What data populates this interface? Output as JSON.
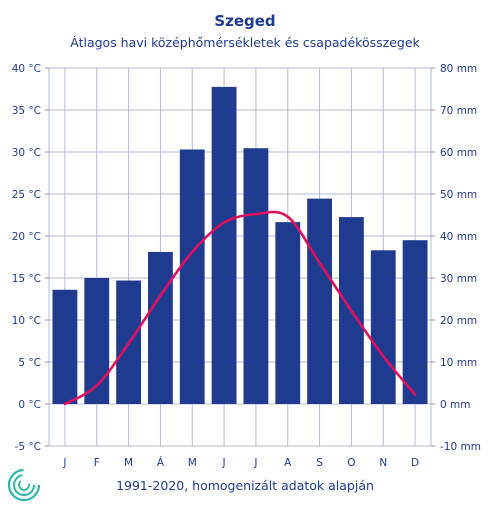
{
  "chart_data": {
    "type": "bar",
    "title": "Szeged",
    "subtitle": "Átlagos havi középhőmérsékletek  és csapadékösszegek",
    "footnote": "1991-2020, homogenizált adatok alapján",
    "categories": [
      "J",
      "F",
      "M",
      "Á",
      "M",
      "J",
      "J",
      "A",
      "S",
      "O",
      "N",
      "D"
    ],
    "left_axis": {
      "ticks": [
        "-5 °C",
        "0 °C",
        "5 °C",
        "10 °C",
        "15 °C",
        "20 °C",
        "25 °C",
        "30 °C",
        "35 °C",
        "40 °C"
      ],
      "ylim": [
        -5,
        40
      ]
    },
    "right_axis": {
      "ticks": [
        "-10 mm",
        "0 mm",
        "10 mm",
        "20 mm",
        "30 mm",
        "40 mm",
        "50 mm",
        "60 mm",
        "70 mm",
        "80 mm"
      ],
      "ylim": [
        -10,
        80
      ]
    },
    "series": [
      {
        "type": "bar",
        "axis": "right",
        "unit": "mm",
        "color": "#1f3b8f",
        "values": [
          27.2,
          30.0,
          29.4,
          36.2,
          60.6,
          75.5,
          60.9,
          43.3,
          48.9,
          44.5,
          36.6,
          39.0
        ]
      },
      {
        "type": "line",
        "axis": "left",
        "unit": "°C",
        "color": "#e0105f",
        "values": [
          0.0,
          2.2,
          7.2,
          12.9,
          18.1,
          21.6,
          22.6,
          22.3,
          16.8,
          11.1,
          5.7,
          1.1
        ]
      }
    ],
    "grid": true,
    "legend": "none"
  }
}
